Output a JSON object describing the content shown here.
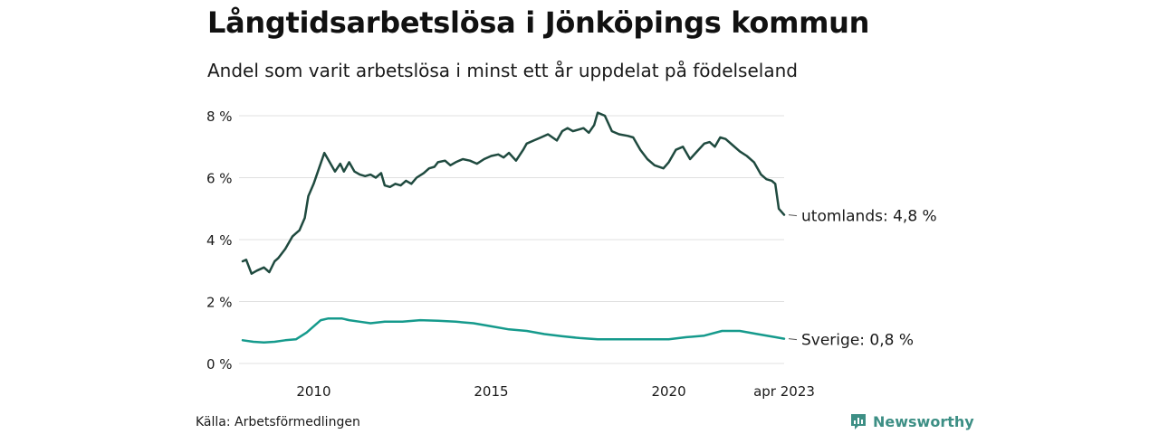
{
  "title": "Långtidsarbetslösa i Jönköpings kommun",
  "subtitle": "Andel som varit arbetslösa i minst ett år uppdelat på födelseland",
  "source": "Källa: Arbetsförmedlingen",
  "brand": {
    "name": "Newsworthy",
    "icon": "newsworthy-logo-icon",
    "color": "#3d8f85"
  },
  "chart_data": {
    "type": "line",
    "title": "Långtidsarbetslösa i Jönköpings kommun",
    "subtitle": "Andel som varit arbetslösa i minst ett år uppdelat på födelseland",
    "xlabel": "",
    "ylabel": "",
    "ylim": [
      0,
      8
    ],
    "y_ticks": [
      0,
      2,
      4,
      6,
      8
    ],
    "y_tick_labels": [
      "0 %",
      "2 %",
      "4 %",
      "6 %",
      "8 %"
    ],
    "x_range": [
      2008.0,
      2023.25
    ],
    "x_ticks": [
      2010,
      2015,
      2020,
      2023.25
    ],
    "x_tick_labels": [
      "2010",
      "2015",
      "2020",
      "apr 2023"
    ],
    "grid": "horizontal",
    "legend": "end-labels",
    "series": [
      {
        "name": "utomlands",
        "color": "#1f4a3f",
        "end_label": "utomlands: 4,8 %",
        "x": [
          2008.0,
          2008.1,
          2008.25,
          2008.4,
          2008.6,
          2008.75,
          2008.9,
          2009.0,
          2009.2,
          2009.4,
          2009.5,
          2009.6,
          2009.75,
          2009.85,
          2010.0,
          2010.15,
          2010.3,
          2010.45,
          2010.6,
          2010.75,
          2010.85,
          2011.0,
          2011.15,
          2011.3,
          2011.45,
          2011.6,
          2011.75,
          2011.9,
          2012.0,
          2012.15,
          2012.3,
          2012.45,
          2012.6,
          2012.75,
          2012.9,
          2013.1,
          2013.25,
          2013.4,
          2013.5,
          2013.7,
          2013.85,
          2014.0,
          2014.2,
          2014.4,
          2014.6,
          2014.8,
          2015.0,
          2015.2,
          2015.35,
          2015.5,
          2015.7,
          2015.9,
          2016.0,
          2016.2,
          2016.4,
          2016.6,
          2016.85,
          2017.0,
          2017.15,
          2017.3,
          2017.45,
          2017.6,
          2017.75,
          2017.9,
          2018.0,
          2018.2,
          2018.4,
          2018.6,
          2018.85,
          2019.0,
          2019.2,
          2019.4,
          2019.6,
          2019.85,
          2020.0,
          2020.2,
          2020.4,
          2020.6,
          2020.8,
          2021.0,
          2021.15,
          2021.3,
          2021.45,
          2021.6,
          2021.8,
          2022.0,
          2022.2,
          2022.4,
          2022.6,
          2022.75,
          2022.9,
          2023.0,
          2023.1,
          2023.25
        ],
        "values": [
          3.3,
          3.35,
          2.9,
          3.0,
          3.1,
          2.95,
          3.3,
          3.4,
          3.7,
          4.1,
          4.2,
          4.3,
          4.7,
          5.4,
          5.8,
          6.3,
          6.8,
          6.5,
          6.2,
          6.45,
          6.2,
          6.5,
          6.2,
          6.1,
          6.05,
          6.1,
          6.0,
          6.15,
          5.75,
          5.7,
          5.8,
          5.75,
          5.9,
          5.8,
          6.0,
          6.15,
          6.3,
          6.35,
          6.5,
          6.55,
          6.4,
          6.5,
          6.6,
          6.55,
          6.45,
          6.6,
          6.7,
          6.75,
          6.65,
          6.8,
          6.55,
          6.9,
          7.1,
          7.2,
          7.3,
          7.4,
          7.2,
          7.5,
          7.6,
          7.5,
          7.55,
          7.6,
          7.45,
          7.7,
          8.1,
          8.0,
          7.5,
          7.4,
          7.35,
          7.3,
          6.9,
          6.6,
          6.4,
          6.3,
          6.5,
          6.9,
          7.0,
          6.6,
          6.85,
          7.1,
          7.15,
          7.0,
          7.3,
          7.25,
          7.05,
          6.85,
          6.7,
          6.5,
          6.1,
          5.95,
          5.9,
          5.8,
          5.0,
          4.8
        ]
      },
      {
        "name": "Sverige",
        "color": "#159a8c",
        "end_label": "Sverige: 0,8 %",
        "x": [
          2008.0,
          2008.3,
          2008.6,
          2008.9,
          2009.2,
          2009.5,
          2009.8,
          2010.0,
          2010.2,
          2010.4,
          2010.6,
          2010.8,
          2011.0,
          2011.3,
          2011.6,
          2012.0,
          2012.5,
          2013.0,
          2013.5,
          2014.0,
          2014.5,
          2015.0,
          2015.5,
          2016.0,
          2016.5,
          2017.0,
          2017.5,
          2018.0,
          2018.5,
          2019.0,
          2019.5,
          2020.0,
          2020.5,
          2021.0,
          2021.5,
          2022.0,
          2022.5,
          2023.0,
          2023.25
        ],
        "values": [
          0.75,
          0.7,
          0.68,
          0.7,
          0.75,
          0.78,
          1.0,
          1.2,
          1.4,
          1.45,
          1.45,
          1.45,
          1.4,
          1.35,
          1.3,
          1.35,
          1.35,
          1.4,
          1.38,
          1.35,
          1.3,
          1.2,
          1.1,
          1.05,
          0.95,
          0.88,
          0.82,
          0.78,
          0.78,
          0.78,
          0.78,
          0.78,
          0.85,
          0.9,
          1.05,
          1.05,
          0.95,
          0.85,
          0.8
        ]
      }
    ]
  }
}
